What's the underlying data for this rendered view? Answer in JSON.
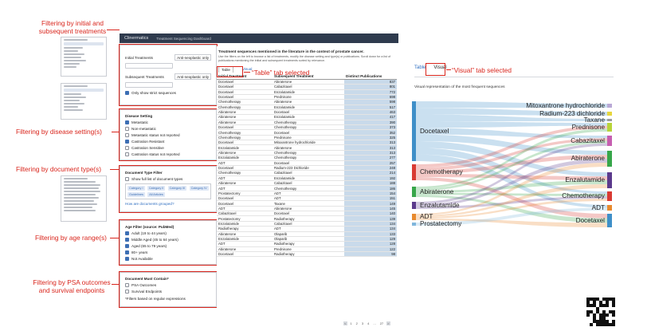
{
  "annotations": {
    "treatments": [
      "Filtering by initial and",
      "subsequent treatments"
    ],
    "disease": "Filtering by disease setting(s)",
    "doctype": "Filtering by document type(s)",
    "age": "Filtering by age range(s)",
    "psa": [
      "Filtering by PSA outcomes",
      "and survival endpoints"
    ],
    "table_tab": "“Table” tab selected",
    "visual_tab": "“Visual” tab selected"
  },
  "header": {
    "logo": "Clinermatics",
    "title": "Treatment Sequencing Dashboard"
  },
  "treatments_panel": {
    "initial_label": "Initial Treatments",
    "subsequent_label": "Subsequent Treatments",
    "class_label": "Anti-neoplastic only",
    "strict_label": "Only show strict sequences"
  },
  "disease_panel": {
    "title": "Disease Setting",
    "options": [
      {
        "label": "Metastatic",
        "checked": true
      },
      {
        "label": "Non-metastatic",
        "checked": false
      },
      {
        "label": "Metastatic status not reported",
        "checked": false
      },
      {
        "label": "Castration Resistant",
        "checked": true
      },
      {
        "label": "Castration Sensitive",
        "checked": false
      },
      {
        "label": "Castration status not reported",
        "checked": false
      }
    ]
  },
  "doctype_panel": {
    "title": "Document Type Filter",
    "show_full": "Show full list of document types",
    "chips": [
      "Category I",
      "Category II",
      "Category III",
      "Category IV",
      "Guidelines",
      "All Articles"
    ],
    "link": "How are documents grouped?"
  },
  "age_panel": {
    "title": "Age Filter (source: PubMed)",
    "options": [
      {
        "label": "Adult (19 to 44 years)",
        "checked": true
      },
      {
        "label": "Middle Aged (45 to 64 years)",
        "checked": true
      },
      {
        "label": "Aged (65 to 79 years)",
        "checked": true
      },
      {
        "label": "80+ years",
        "checked": true
      },
      {
        "label": "Not Available",
        "checked": true
      }
    ]
  },
  "psa_panel": {
    "title": "Document Must Contain*",
    "options": [
      {
        "label": "PSA Outcomes",
        "checked": false
      },
      {
        "label": "Survival Endpoints",
        "checked": false
      }
    ],
    "note": "*Filters based on regular expressions"
  },
  "table": {
    "title": "Treatment sequences mentioned in the literature in the context of prostate cancer.",
    "desc": "Use the filters on the left to browse a list of treatments, modify the disease setting and type(s) or publications. Scroll down for a list of publications mentioning the initial and subsequent treatments sorted by relevance.",
    "tab_table": "Table",
    "tab_visual": "Visual",
    "columns": [
      "Initial Treatment",
      "Subsequent Treatment",
      "Distinct Publications"
    ],
    "rows": [
      [
        "Docetaxel",
        "Abiraterone",
        "837"
      ],
      [
        "Docetaxel",
        "Cabazitaxel",
        "801"
      ],
      [
        "Docetaxel",
        "Enzalutamide",
        "772"
      ],
      [
        "Docetaxel",
        "Prednisone",
        "698"
      ],
      [
        "Chemotherapy",
        "Abiraterone",
        "598"
      ],
      [
        "Chemotherapy",
        "Enzalutamide",
        "517"
      ],
      [
        "Abiraterone",
        "Docetaxel",
        "463"
      ],
      [
        "Abiraterone",
        "Enzalutamide",
        "417"
      ],
      [
        "Abiraterone",
        "Chemotherapy",
        "390"
      ],
      [
        "Docetaxel",
        "Chemotherapy",
        "373"
      ],
      [
        "Chemotherapy",
        "Docetaxel",
        "352"
      ],
      [
        "Chemotherapy",
        "Prednisone",
        "325"
      ],
      [
        "Docetaxel",
        "Mitoxantrone hydrochloride",
        "313"
      ],
      [
        "Enzalutamide",
        "Abiraterone",
        "313"
      ],
      [
        "Abiraterone",
        "Chemotherapy",
        "313"
      ],
      [
        "Enzalutamide",
        "Chemotherapy",
        "277"
      ],
      [
        "ADT",
        "Docetaxel",
        "257"
      ],
      [
        "Docetaxel",
        "Radium-223 Dichloride",
        "248"
      ],
      [
        "Chemotherapy",
        "Cabazitaxel",
        "214"
      ],
      [
        "ADT",
        "Enzalutamide",
        "192"
      ],
      [
        "Abiraterone",
        "Cabazitaxel",
        "188"
      ],
      [
        "ADT",
        "Chemotherapy",
        "186"
      ],
      [
        "Prostatectomy",
        "ADT",
        "154"
      ],
      [
        "Docetaxel",
        "ADT",
        "151"
      ],
      [
        "Docetaxel",
        "Taxane",
        "149"
      ],
      [
        "ADT",
        "Abiraterone",
        "145"
      ],
      [
        "Cabazitaxel",
        "Docetaxel",
        "140"
      ],
      [
        "Prostatectomy",
        "Radiotherapy",
        "139"
      ],
      [
        "Enzalutamide",
        "Cabazitaxel",
        "134"
      ],
      [
        "Radiotherapy",
        "ADT",
        "134"
      ],
      [
        "Abiraterone",
        "Olaparib",
        "133"
      ],
      [
        "Enzalutamide",
        "Olaparib",
        "129"
      ],
      [
        "ADT",
        "Radiotherapy",
        "128"
      ],
      [
        "Abiraterone",
        "Prednisone",
        "122"
      ],
      [
        "Docetaxel",
        "Radiotherapy",
        "98"
      ]
    ],
    "pager": [
      "<",
      "1",
      "2",
      "3",
      "4",
      "...",
      "27",
      ">"
    ]
  },
  "visual": {
    "tab_table": "Table",
    "tab_visual": "Visual",
    "caption": "Visual representation of the most frequent sequences",
    "left_nodes": [
      {
        "label": "Docetaxel",
        "color": "#3f8fc8"
      },
      {
        "label": "Chemotherapy",
        "color": "#d93a33"
      },
      {
        "label": "Abiraterone",
        "color": "#37a64a"
      },
      {
        "label": "Enzalutamide",
        "color": "#5b3a8c"
      },
      {
        "label": "ADT",
        "color": "#e88a2e"
      },
      {
        "label": "Prostatectomy",
        "color": "#7fb6dc"
      }
    ],
    "right_nodes": [
      {
        "label": "Mitoxantrone hydrochloride",
        "color": "#b9a9d6"
      },
      {
        "label": "Radium-223 dichloride",
        "color": "#e7d63d"
      },
      {
        "label": "Taxane",
        "color": "#9b9b9b"
      },
      {
        "label": "Prednisone",
        "color": "#b8d43a"
      },
      {
        "label": "Cabazitaxel",
        "color": "#c65fb0"
      },
      {
        "label": "Abiraterone",
        "color": "#37a64a"
      },
      {
        "label": "Enzalutamide",
        "color": "#5b3a8c"
      },
      {
        "label": "Chemotherapy",
        "color": "#d93a33"
      },
      {
        "label": "ADT",
        "color": "#e88a2e"
      },
      {
        "label": "Docetaxel",
        "color": "#3f8fc8"
      }
    ]
  },
  "colors": {
    "annotation": "#d9251c",
    "header": "#2f3b4e",
    "link": "#2e6ec0",
    "count_cell": "#c9daea"
  }
}
